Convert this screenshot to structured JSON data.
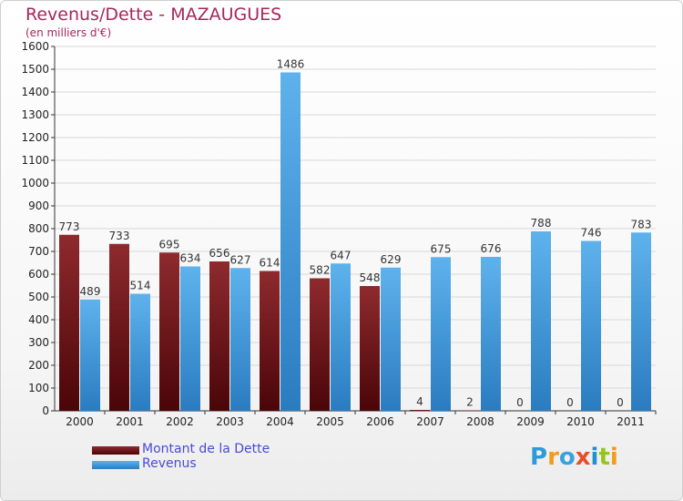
{
  "title": "Revenus/Dette - MAZAUGUES",
  "subtitle": "(en milliers d'€)",
  "logo": {
    "text": "Proxiti",
    "letter_colors": [
      "#2e9bd8",
      "#f29b1c",
      "#3aa1e0",
      "#e84e2b",
      "#1f8fd6",
      "#9ac31c",
      "#f29b1c"
    ]
  },
  "legend": [
    {
      "label": "Montant de la Dette",
      "color": "#6b1014"
    },
    {
      "label": "Revenus",
      "color": "#3d95d8"
    }
  ],
  "chart_data": {
    "type": "bar",
    "categories": [
      "2000",
      "2001",
      "2002",
      "2003",
      "2004",
      "2005",
      "2006",
      "2007",
      "2008",
      "2009",
      "2010",
      "2011"
    ],
    "series": [
      {
        "name": "Montant de la Dette",
        "color": "#6b1014",
        "values": [
          773,
          733,
          695,
          656,
          614,
          582,
          548,
          4,
          2,
          0,
          0,
          0
        ]
      },
      {
        "name": "Revenus",
        "color": "#3d95d8",
        "values": [
          489,
          514,
          634,
          627,
          1486,
          647,
          629,
          675,
          676,
          788,
          746,
          783
        ]
      }
    ],
    "title": "Revenus/Dette - MAZAUGUES",
    "xlabel": "",
    "ylabel": "(en milliers d'€)",
    "ylim": [
      0,
      1600
    ],
    "yticks": [
      0,
      100,
      200,
      300,
      400,
      500,
      600,
      700,
      800,
      900,
      1000,
      1100,
      1200,
      1300,
      1400,
      1500,
      1600
    ],
    "grid": true,
    "legend_position": "bottom-left"
  }
}
